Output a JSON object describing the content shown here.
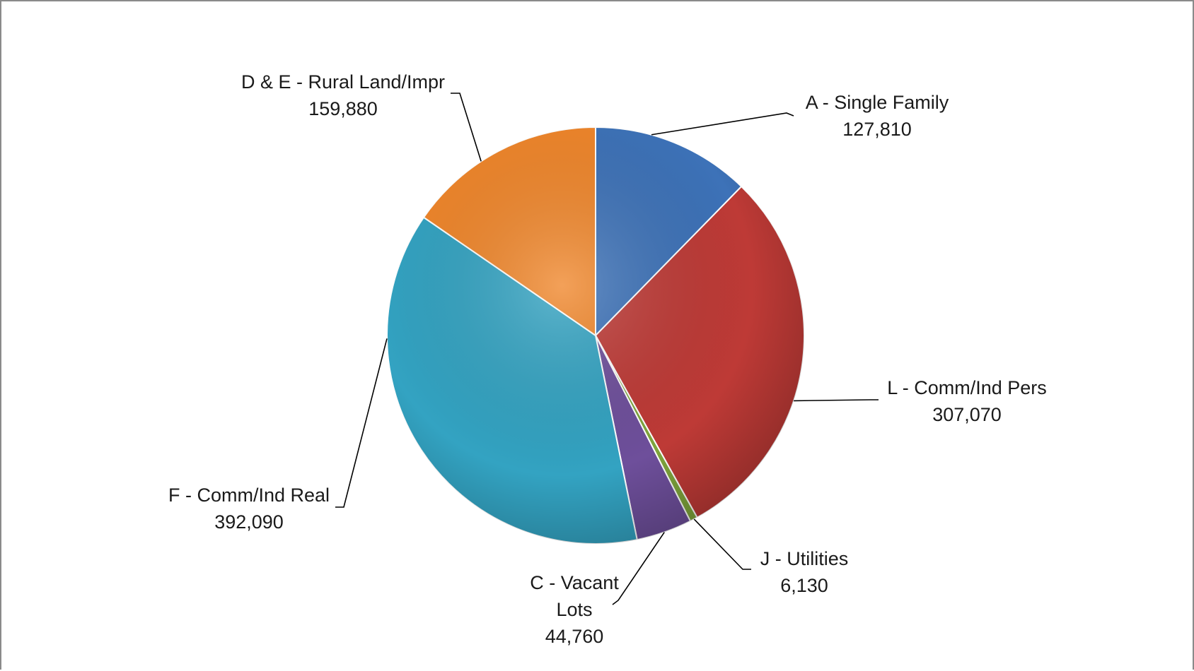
{
  "chart_data": {
    "type": "pie",
    "title": "",
    "slices": [
      {
        "label": "A - Single Family",
        "value": 127810,
        "value_text": "127,810",
        "color": "#3d72b8"
      },
      {
        "label": "L - Comm/Ind Pers",
        "value": 307070,
        "value_text": "307,070",
        "color": "#be3a36"
      },
      {
        "label": "J - Utilities",
        "value": 6130,
        "value_text": "6,130",
        "color": "#7fa53c"
      },
      {
        "label": [
          "C - Vacant",
          "Lots"
        ],
        "value": 44760,
        "value_text": "44,760",
        "color": "#6e4f9b"
      },
      {
        "label": "F - Comm/Ind Real",
        "value": 392090,
        "value_text": "392,090",
        "color": "#33a3c2"
      },
      {
        "label": "D & E - Rural Land/Impr",
        "value": 159880,
        "value_text": "159,880",
        "color": "#f0862a"
      }
    ],
    "start_angle_deg": 0,
    "direction": "clockwise",
    "data_labels": "category name and value, outside with leader lines",
    "legend": "none"
  }
}
